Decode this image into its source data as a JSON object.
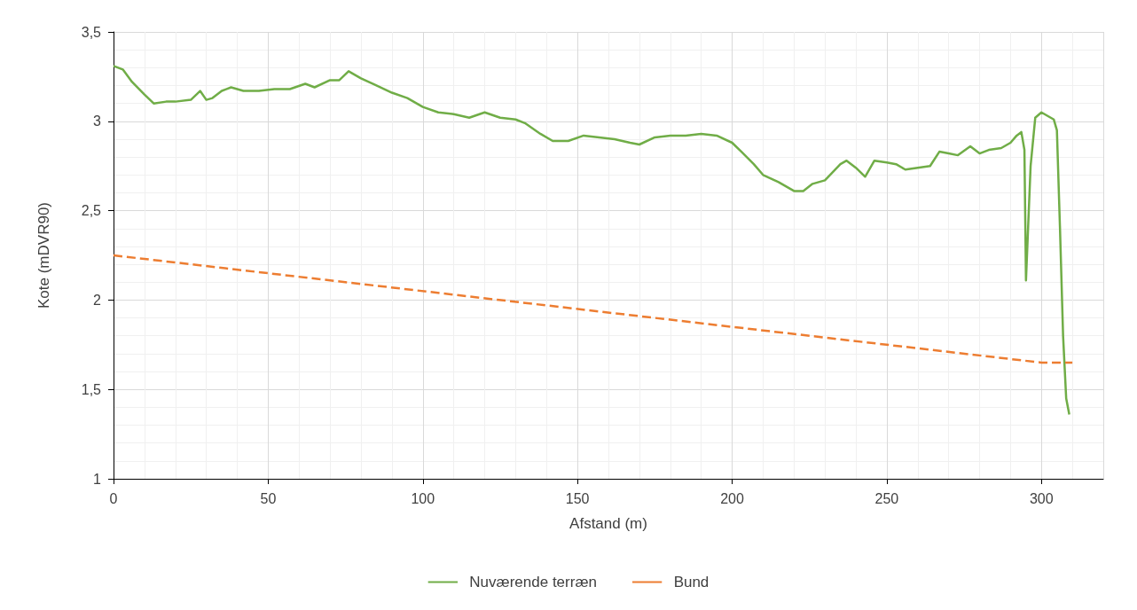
{
  "chart_data": {
    "type": "line",
    "xlabel": "Afstand (m)",
    "ylabel": "Kote (mDVR90)",
    "xlim": [
      0,
      320
    ],
    "xticks": [
      0,
      50,
      100,
      150,
      200,
      250,
      300
    ],
    "ylim": [
      1,
      3.5
    ],
    "yticks": [
      {
        "value": 1,
        "label": "1"
      },
      {
        "value": 1.5,
        "label": "1,5"
      },
      {
        "value": 2,
        "label": "2"
      },
      {
        "value": 2.5,
        "label": "2,5"
      },
      {
        "value": 3,
        "label": "3"
      },
      {
        "value": 3.5,
        "label": "3,5"
      }
    ],
    "grid": true,
    "legend": "bottom",
    "marker": "none",
    "series": [
      {
        "name": "Nuværende terræn",
        "color": "#70ad47",
        "line_style": "solid",
        "x": [
          0,
          3,
          6,
          10,
          13,
          17,
          20,
          25,
          28,
          30,
          32,
          35,
          38,
          42,
          47,
          52,
          57,
          62,
          65,
          70,
          73,
          76,
          80,
          85,
          90,
          95,
          100,
          105,
          110,
          115,
          120,
          125,
          130,
          133,
          138,
          142,
          147,
          152,
          157,
          162,
          167,
          170,
          175,
          180,
          185,
          190,
          195,
          200,
          203,
          207,
          210,
          215,
          220,
          223,
          226,
          230,
          235,
          237,
          240,
          243,
          246,
          250,
          253,
          256,
          260,
          264,
          267,
          270,
          273,
          277,
          280,
          283,
          287,
          290,
          292,
          293.5,
          294.5,
          295,
          296.5,
          298,
          300,
          302,
          304,
          305,
          306,
          307,
          308,
          309
        ],
        "values": [
          3.31,
          3.29,
          3.22,
          3.15,
          3.1,
          3.11,
          3.11,
          3.12,
          3.17,
          3.12,
          3.13,
          3.17,
          3.19,
          3.17,
          3.17,
          3.18,
          3.18,
          3.21,
          3.19,
          3.23,
          3.23,
          3.28,
          3.24,
          3.2,
          3.16,
          3.13,
          3.08,
          3.05,
          3.04,
          3.02,
          3.05,
          3.02,
          3.01,
          2.99,
          2.93,
          2.89,
          2.89,
          2.92,
          2.91,
          2.9,
          2.88,
          2.87,
          2.91,
          2.92,
          2.92,
          2.93,
          2.92,
          2.88,
          2.83,
          2.76,
          2.7,
          2.66,
          2.61,
          2.61,
          2.65,
          2.67,
          2.76,
          2.78,
          2.74,
          2.69,
          2.78,
          2.77,
          2.76,
          2.73,
          2.74,
          2.75,
          2.83,
          2.82,
          2.81,
          2.86,
          2.82,
          2.84,
          2.85,
          2.88,
          2.92,
          2.94,
          2.84,
          2.11,
          2.75,
          3.02,
          3.05,
          3.03,
          3.01,
          2.95,
          2.4,
          1.8,
          1.45,
          1.36
        ]
      },
      {
        "name": "Bund",
        "color": "#ed7d31",
        "line_style": "dashed",
        "x": [
          0,
          300,
          310
        ],
        "values": [
          2.25,
          1.65,
          1.65
        ]
      }
    ]
  }
}
